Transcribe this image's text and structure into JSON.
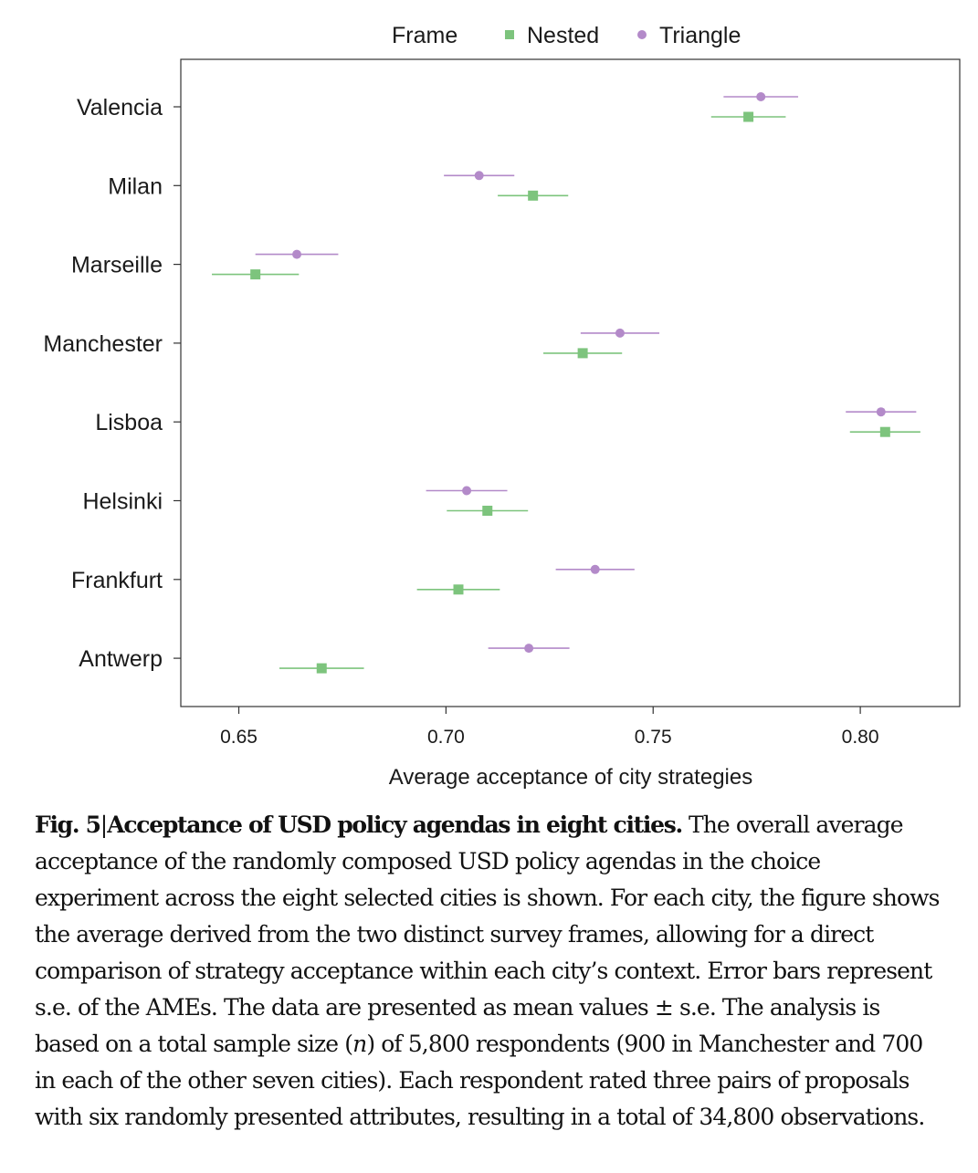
{
  "colors": {
    "nested": "#7dc47d",
    "triangle": "#b38ac9",
    "axis": "#333333",
    "text": "#111111"
  },
  "caption": {
    "label": "Fig. 5",
    "separator": "|",
    "title": "Acceptance of USD policy agendas in eight cities.",
    "body": "The overall average acceptance of the randomly composed USD policy agendas in the choice experiment across the eight selected cities is shown. For each city, the figure shows the average derived from the two distinct survey frames, allowing for a direct comparison of strategy acceptance within each city’s context. Error bars represent s.e. of the AMEs. The data are presented as mean values ± s.e. The analysis is based on a total sample size (",
    "n_symbol": "n",
    "body_end": ") of 5,800 respondents (900 in Manchester and 700 in each of the other seven cities). Each respondent rated three pairs of proposals with six randomly presented attributes, resulting in a total of 34,800 observations."
  },
  "chart_data": {
    "type": "scatter",
    "title": "",
    "xlabel": "Average acceptance of city strategies",
    "ylabel": "",
    "xlim": [
      0.636,
      0.824
    ],
    "xticks": [
      0.65,
      0.7,
      0.75,
      0.8
    ],
    "xtick_labels": [
      "0.65",
      "0.70",
      "0.75",
      "0.80"
    ],
    "grid": false,
    "legend": {
      "title": "Frame",
      "placement": "top-center"
    },
    "categories": [
      "Valencia",
      "Milan",
      "Marseille",
      "Manchester",
      "Lisboa",
      "Helsinki",
      "Frankfurt",
      "Antwerp"
    ],
    "series": [
      {
        "name": "Nested",
        "marker": "square",
        "color": "#7dc47d",
        "values": [
          0.773,
          0.721,
          0.654,
          0.733,
          0.806,
          0.71,
          0.703,
          0.67
        ],
        "se": [
          0.009,
          0.0085,
          0.0105,
          0.0095,
          0.0085,
          0.0098,
          0.01,
          0.0102
        ]
      },
      {
        "name": "Triangle",
        "marker": "circle",
        "color": "#b38ac9",
        "values": [
          0.776,
          0.708,
          0.664,
          0.742,
          0.805,
          0.705,
          0.736,
          0.72
        ],
        "se": [
          0.009,
          0.0085,
          0.01,
          0.0095,
          0.0085,
          0.0098,
          0.0095,
          0.0098
        ]
      }
    ]
  }
}
